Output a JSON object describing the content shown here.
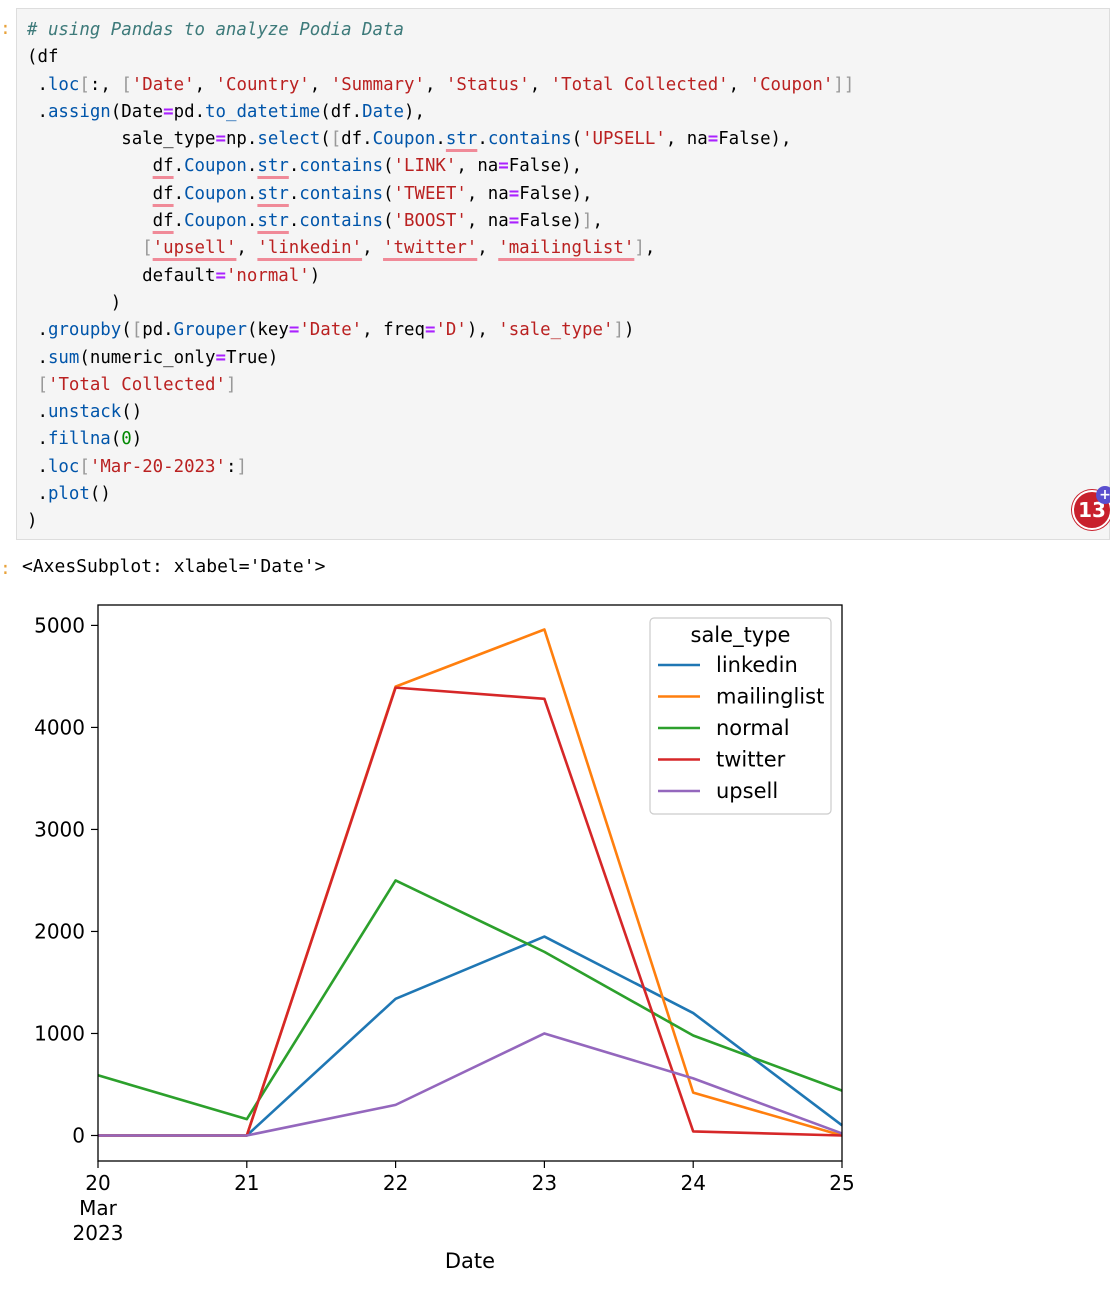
{
  "cell": {
    "code_lines": [
      "# using Pandas to analyze Podia Data",
      "(df",
      " .loc[:, ['Date', 'Country', 'Summary', 'Status', 'Total Collected', 'Coupon']]",
      " .assign(Date=pd.to_datetime(df.Date),",
      "         sale_type=np.select([df.Coupon.str.contains('UPSELL', na=False),",
      "            df.Coupon.str.contains('LINK', na=False),",
      "            df.Coupon.str.contains('TWEET', na=False),",
      "            df.Coupon.str.contains('BOOST', na=False)],",
      "           ['upsell', 'linkedin', 'twitter', 'mailinglist'],",
      "           default='normal')",
      "        )",
      " .groupby([pd.Grouper(key='Date', freq='D'), 'sale_type'])",
      " .sum(numeric_only=True)",
      " ['Total Collected']",
      " .unstack()",
      " .fillna(0)",
      " .loc['Mar-20-2023':]",
      " .plot()",
      ")"
    ],
    "output_text": "<AxesSubplot: xlabel='Date'>",
    "badge_count": "13",
    "badge_plus": "+"
  },
  "chart_data": {
    "type": "line",
    "x": [
      20,
      21,
      22,
      23,
      24,
      25
    ],
    "x_tick_labels": [
      "20",
      "21",
      "22",
      "23",
      "24",
      "25"
    ],
    "x_sub_labels": [
      "Mar",
      "2023"
    ],
    "xlabel": "Date",
    "ylabel": "",
    "ylim": [
      -250,
      5200
    ],
    "y_ticks": [
      0,
      1000,
      2000,
      3000,
      4000,
      5000
    ],
    "legend_title": "sale_type",
    "legend_position": "top-right",
    "grid": false,
    "series": [
      {
        "name": "linkedin",
        "color": "#1f77b4",
        "values": [
          0,
          0,
          1340,
          1950,
          1200,
          100
        ]
      },
      {
        "name": "mailinglist",
        "color": "#ff7f0e",
        "values": [
          0,
          0,
          4400,
          4960,
          420,
          0
        ]
      },
      {
        "name": "normal",
        "color": "#2ca02c",
        "values": [
          590,
          160,
          2500,
          1800,
          980,
          440
        ]
      },
      {
        "name": "twitter",
        "color": "#d62728",
        "values": [
          0,
          0,
          4390,
          4280,
          40,
          0
        ]
      },
      {
        "name": "upsell",
        "color": "#9467bd",
        "values": [
          0,
          0,
          300,
          1000,
          560,
          20
        ]
      }
    ]
  }
}
